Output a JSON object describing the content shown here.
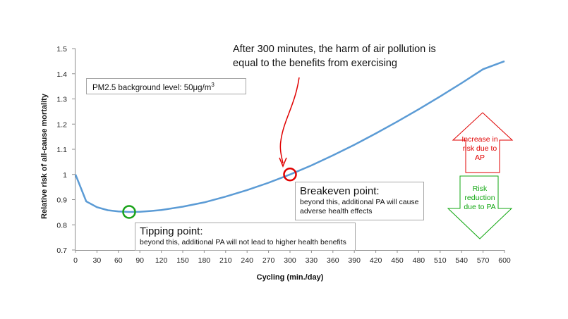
{
  "headline": {
    "line1": "After 300 minutes, the harm of air pollution is",
    "line2": "equal to the benefits from exercising"
  },
  "annotations": {
    "pm_label": "PM2.5 background level: 50μg/m",
    "pm_superscript": "3",
    "breakeven_title": "Breakeven point:",
    "breakeven_line1": "beyond this, additional PA will cause",
    "breakeven_line2": "adverse health effects",
    "tipping_title": "Tipping point:",
    "tipping_text": "beyond this, additional PA will not lead to higher health benefits",
    "increase_line1": "Increase in",
    "increase_line2": "risk due to",
    "increase_line3": "AP",
    "reduction_line1": "Risk",
    "reduction_line2": "reduction",
    "reduction_line3": "due to PA"
  },
  "colors": {
    "line": "#5b9bd5",
    "breakeven_marker": "#e00000",
    "tipping_marker": "#1aa31a",
    "increase_arrow": "#e00000",
    "reduction_arrow": "#11a711",
    "pointer_arrow": "#e00000"
  },
  "chart_data": {
    "type": "line",
    "xlabel": "Cycling (min./day)",
    "ylabel": "Relative risk of all-cause mortality",
    "xlim": [
      0,
      600
    ],
    "ylim": [
      0.7,
      1.5
    ],
    "xticks": [
      0,
      30,
      60,
      90,
      120,
      150,
      180,
      210,
      240,
      270,
      300,
      330,
      360,
      390,
      420,
      450,
      480,
      510,
      540,
      570,
      600
    ],
    "yticks": [
      0.7,
      0.8,
      0.9,
      1,
      1.1,
      1.2,
      1.3,
      1.4,
      1.5
    ],
    "ytick_labels": [
      "0.7",
      "0.8",
      "0.9",
      "1",
      "1.1",
      "1.2",
      "1.3",
      "1.4",
      "1.5"
    ],
    "grid": false,
    "series": [
      {
        "x": [
          0,
          15,
          30,
          45,
          60,
          75,
          90,
          105,
          120,
          150,
          180,
          210,
          240,
          270,
          300,
          330,
          360,
          390,
          420,
          450,
          480,
          510,
          540,
          570,
          600
        ],
        "y": [
          1.0,
          0.893,
          0.87,
          0.858,
          0.853,
          0.851,
          0.852,
          0.855,
          0.859,
          0.872,
          0.889,
          0.912,
          0.938,
          0.967,
          1.0,
          1.036,
          1.076,
          1.118,
          1.163,
          1.21,
          1.259,
          1.31,
          1.363,
          1.418,
          1.45
        ]
      }
    ],
    "markers": [
      {
        "name": "Breakeven point",
        "x": 300,
        "y": 1.0
      },
      {
        "name": "Tipping point",
        "x": 75,
        "y": 0.851
      }
    ]
  }
}
